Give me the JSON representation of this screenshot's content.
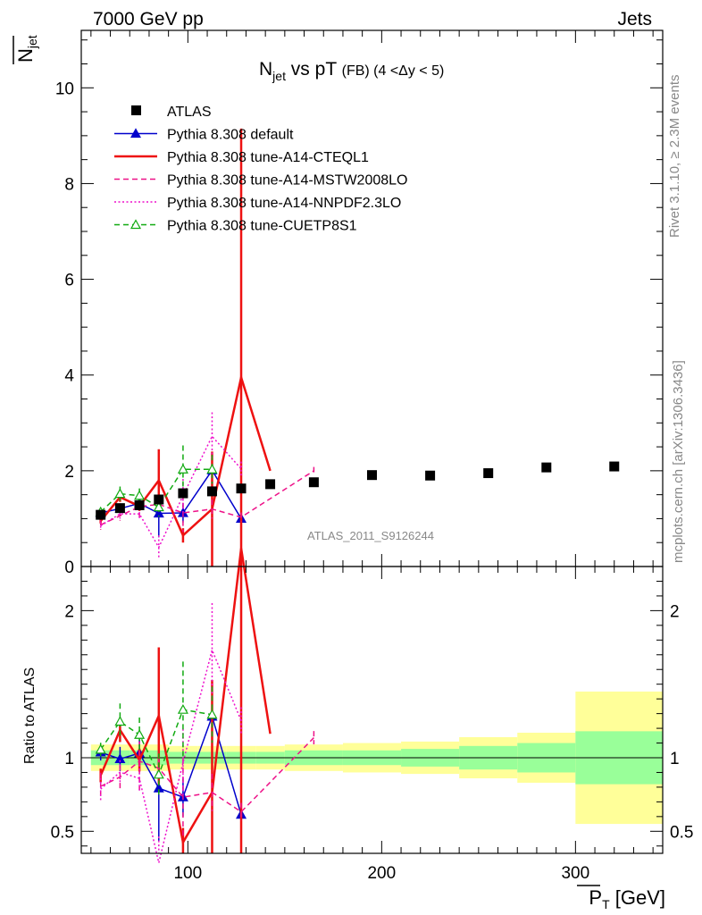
{
  "header": {
    "left": "7000 GeV pp",
    "right": "Jets"
  },
  "side_labels": {
    "rivet": "Rivet 3.1.10, ≥ 2.3M events",
    "mcplots": "mcplots.cern.ch [arXiv:1306.3436]"
  },
  "chart_data": {
    "type": "scatter",
    "title": "N_jet vs pT (FB) (4 < Δy < 5)",
    "title_parts": {
      "main": "N",
      "sub": "jet",
      "rest": " vs pT ",
      "small": "(FB) (4 <Δy < 5)"
    },
    "watermark": "ATLAS_2011_S9126244",
    "xlabel": "P_T [GeV]",
    "xlabel_parts": {
      "sym": "P",
      "sub": "T",
      "unit": " [GeV]"
    },
    "ylabel": "N_jet",
    "ylabel_parts": {
      "sym": "N",
      "sub": "jet"
    },
    "ratio_ylabel": "Ratio to ATLAS",
    "xlim": [
      45,
      345
    ],
    "ylim": [
      0,
      11.2
    ],
    "ratio_ylim": [
      0.35,
      2.3
    ],
    "xticks": [
      100,
      200,
      300
    ],
    "yticks": [
      0,
      2,
      4,
      6,
      8,
      10
    ],
    "ratio_yticks": [
      0.5,
      1,
      2
    ],
    "data": {
      "name": "ATLAS",
      "x": [
        55,
        65,
        75,
        85,
        97.5,
        112.5,
        127.5,
        142.5,
        165,
        195,
        225,
        255,
        285,
        320
      ],
      "y": [
        1.08,
        1.22,
        1.28,
        1.4,
        1.53,
        1.57,
        1.63,
        1.72,
        1.76,
        1.91,
        1.9,
        1.95,
        2.07,
        2.09
      ],
      "xerr_lo": [
        5,
        5,
        5,
        5,
        7.5,
        7.5,
        7.5,
        7.5,
        15,
        15,
        15,
        15,
        15,
        20
      ],
      "xerr_hi": [
        5,
        5,
        5,
        5,
        7.5,
        7.5,
        7.5,
        7.5,
        15,
        15,
        15,
        15,
        15,
        25
      ],
      "band_inner": [
        0.05,
        0.05,
        0.05,
        0.05,
        0.04,
        0.04,
        0.04,
        0.04,
        0.05,
        0.05,
        0.06,
        0.08,
        0.1,
        0.18
      ],
      "band_outer": [
        0.09,
        0.09,
        0.09,
        0.09,
        0.08,
        0.08,
        0.08,
        0.08,
        0.09,
        0.1,
        0.11,
        0.14,
        0.17,
        0.45
      ]
    },
    "series": [
      {
        "name": "Pythia 8.308 default",
        "color": "#0000cc",
        "marker": "triangle-filled",
        "dash": "solid",
        "x": [
          55,
          65,
          75,
          85,
          97.5,
          112.5,
          127.5
        ],
        "y": [
          1.12,
          1.21,
          1.32,
          1.11,
          1.12,
          2.01,
          1.0
        ],
        "err": [
          0.06,
          0.1,
          0.12,
          0.5,
          0.2,
          0.2,
          0.05
        ]
      },
      {
        "name": "Pythia 8.308 tune-A14-CTEQL1",
        "color": "#ee1111",
        "marker": "none",
        "dash": "solid",
        "x": [
          55,
          65,
          75,
          85,
          97.5,
          112.5,
          127.5,
          142.5
        ],
        "y": [
          0.95,
          1.45,
          1.26,
          1.8,
          0.65,
          1.2,
          3.95,
          2.0
        ],
        "err": [
          0.05,
          0.1,
          0.1,
          0.65,
          0.15,
          1.2,
          5.2,
          0
        ]
      },
      {
        "name": "Pythia 8.308 tune-A14-MSTW2008LO",
        "color": "#ee1188",
        "marker": "none",
        "dash": "dashed",
        "x": [
          55,
          65,
          75,
          85,
          97.5,
          112.5,
          127.5,
          165
        ],
        "y": [
          0.87,
          1.06,
          1.25,
          1.3,
          1.12,
          1.2,
          1.03,
          2.0
        ],
        "err": [
          0.1,
          0.1,
          0.25,
          0.1,
          0.4,
          0.2,
          0.1,
          0.08
        ]
      },
      {
        "name": "Pythia 8.308 tune-A14-NNPDF2.3LO",
        "color": "#ee11cc",
        "marker": "none",
        "dash": "dotted",
        "x": [
          55,
          65,
          75,
          85,
          97.5,
          112.5,
          127.5
        ],
        "y": [
          0.85,
          1.1,
          1.1,
          0.4,
          1.48,
          2.72,
          2.04
        ],
        "err": [
          0.08,
          0.1,
          0.12,
          0.25,
          0.35,
          0.5,
          0.15
        ]
      },
      {
        "name": "Pythia 8.308 tune-CUETP8S1",
        "color": "#11aa11",
        "marker": "triangle-open",
        "dash": "dashed",
        "x": [
          55,
          65,
          75,
          85,
          97.5,
          112.5
        ],
        "y": [
          1.14,
          1.52,
          1.48,
          1.24,
          2.03,
          2.03
        ],
        "err": [
          0.05,
          0.15,
          0.15,
          0.2,
          0.5,
          0.3
        ]
      }
    ]
  }
}
